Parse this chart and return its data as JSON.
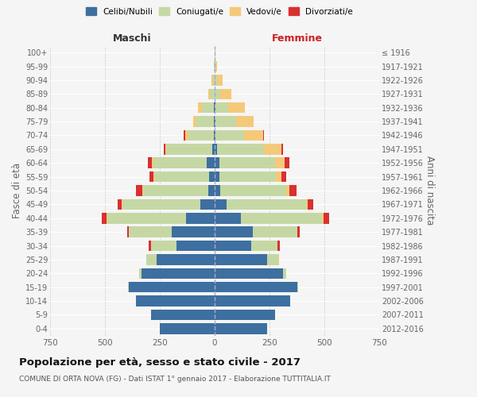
{
  "age_groups": [
    "0-4",
    "5-9",
    "10-14",
    "15-19",
    "20-24",
    "25-29",
    "30-34",
    "35-39",
    "40-44",
    "45-49",
    "50-54",
    "55-59",
    "60-64",
    "65-69",
    "70-74",
    "75-79",
    "80-84",
    "85-89",
    "90-94",
    "95-99",
    "100+"
  ],
  "birth_years": [
    "2012-2016",
    "2007-2011",
    "2002-2006",
    "1997-2001",
    "1992-1996",
    "1987-1991",
    "1982-1986",
    "1977-1981",
    "1972-1976",
    "1967-1971",
    "1962-1966",
    "1957-1961",
    "1952-1956",
    "1947-1951",
    "1942-1946",
    "1937-1941",
    "1932-1936",
    "1927-1931",
    "1922-1926",
    "1917-1921",
    "≤ 1916"
  ],
  "male": {
    "celibi": [
      250,
      290,
      360,
      390,
      335,
      265,
      175,
      195,
      130,
      65,
      30,
      25,
      35,
      10,
      5,
      5,
      3,
      0,
      0,
      0,
      0
    ],
    "coniugati": [
      0,
      0,
      0,
      5,
      10,
      45,
      115,
      195,
      360,
      355,
      295,
      250,
      245,
      210,
      115,
      80,
      55,
      20,
      8,
      2,
      0
    ],
    "vedovi": [
      0,
      0,
      0,
      0,
      1,
      1,
      1,
      2,
      4,
      3,
      5,
      5,
      5,
      5,
      15,
      12,
      18,
      10,
      5,
      2,
      0
    ],
    "divorziati": [
      0,
      0,
      0,
      0,
      0,
      2,
      10,
      8,
      20,
      20,
      28,
      18,
      20,
      8,
      5,
      0,
      0,
      0,
      0,
      0,
      0
    ]
  },
  "female": {
    "nubili": [
      240,
      275,
      345,
      375,
      310,
      240,
      165,
      175,
      120,
      55,
      25,
      20,
      20,
      10,
      5,
      3,
      2,
      0,
      0,
      0,
      0
    ],
    "coniugate": [
      0,
      0,
      0,
      5,
      15,
      50,
      120,
      200,
      370,
      360,
      300,
      260,
      255,
      215,
      130,
      95,
      60,
      25,
      12,
      3,
      0
    ],
    "vedove": [
      0,
      0,
      0,
      0,
      1,
      2,
      2,
      3,
      6,
      8,
      15,
      25,
      45,
      80,
      85,
      80,
      75,
      50,
      25,
      8,
      2
    ],
    "divorziate": [
      0,
      0,
      0,
      0,
      0,
      2,
      10,
      10,
      25,
      25,
      32,
      22,
      22,
      8,
      5,
      0,
      0,
      0,
      0,
      0,
      0
    ]
  },
  "colors": {
    "celibi_nubili": "#3d6fa0",
    "coniugati": "#c5d8a4",
    "vedovi": "#f5c97a",
    "divorziati": "#d93030"
  },
  "xlim": 750,
  "title": "Popolazione per età, sesso e stato civile - 2017",
  "subtitle": "COMUNE DI ORTA NOVA (FG) - Dati ISTAT 1° gennaio 2017 - Elaborazione TUTTITALIA.IT",
  "ylabel": "Fasce di età",
  "ylabel_right": "Anni di nascita",
  "xlabel_left": "Maschi",
  "xlabel_right": "Femmine",
  "background_color": "#f5f5f5",
  "legend_labels": [
    "Celibi/Nubili",
    "Coniugati/e",
    "Vedovi/e",
    "Divorziati/e"
  ]
}
